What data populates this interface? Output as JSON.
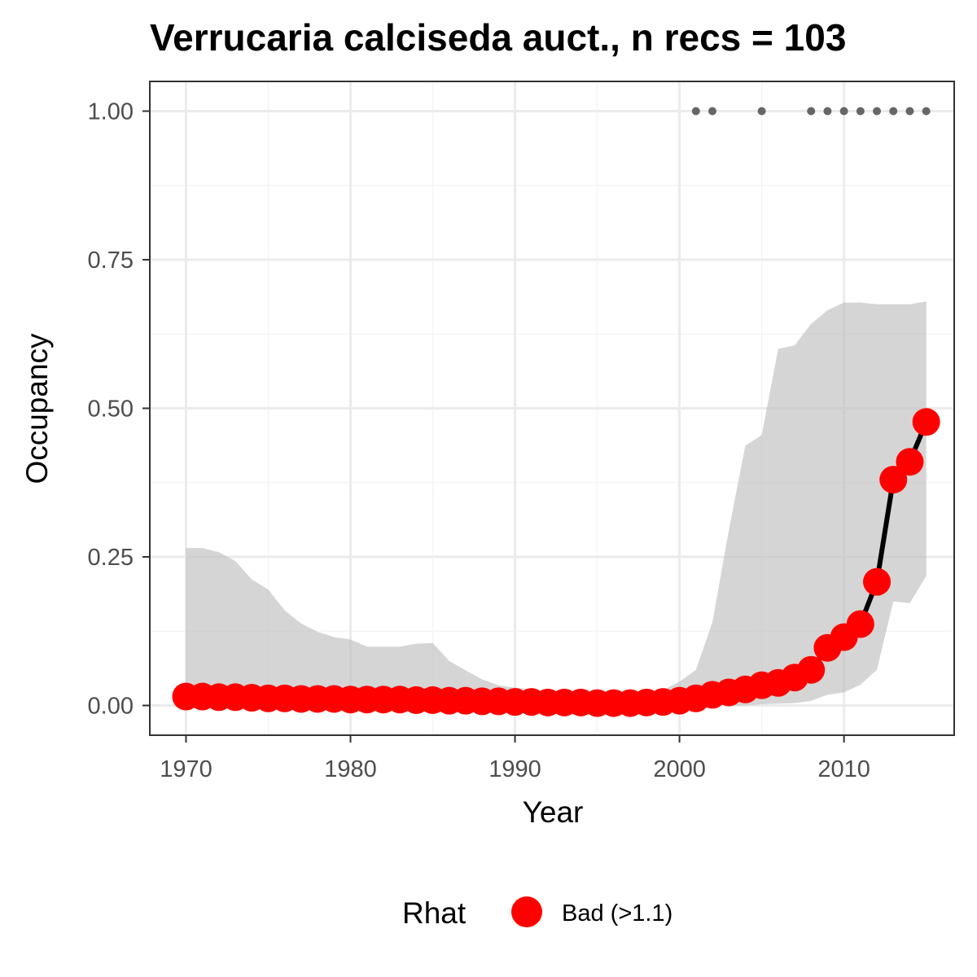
{
  "chart_data": {
    "type": "line",
    "title": "Verrucaria calciseda auct., n recs = 103",
    "xlabel": "Year",
    "ylabel": "Occupancy",
    "xlim": [
      1967.8,
      2016.7
    ],
    "ylim": [
      -0.05,
      1.05
    ],
    "x_ticks": [
      1970,
      1980,
      1990,
      2000,
      2010
    ],
    "x_tick_labels": [
      "1970",
      "1980",
      "1990",
      "2000",
      "2010"
    ],
    "y_ticks": [
      0,
      0.25,
      0.5,
      0.75,
      1.0
    ],
    "y_tick_labels": [
      "0.00",
      "0.25",
      "0.50",
      "0.75",
      "1.00"
    ],
    "grid": true,
    "x": [
      1970,
      1971,
      1972,
      1973,
      1974,
      1975,
      1976,
      1977,
      1978,
      1979,
      1980,
      1981,
      1982,
      1983,
      1984,
      1985,
      1986,
      1987,
      1988,
      1989,
      1990,
      1991,
      1992,
      1993,
      1994,
      1995,
      1996,
      1997,
      1998,
      1999,
      2000,
      2001,
      2002,
      2003,
      2004,
      2005,
      2006,
      2007,
      2008,
      2009,
      2010,
      2011,
      2012,
      2013,
      2014,
      2015
    ],
    "series": [
      {
        "name": "Bad (>1.1)",
        "values": [
          0.015,
          0.015,
          0.014,
          0.014,
          0.013,
          0.012,
          0.012,
          0.011,
          0.011,
          0.011,
          0.01,
          0.01,
          0.01,
          0.01,
          0.009,
          0.009,
          0.008,
          0.008,
          0.007,
          0.007,
          0.006,
          0.006,
          0.005,
          0.005,
          0.005,
          0.004,
          0.004,
          0.004,
          0.005,
          0.006,
          0.008,
          0.012,
          0.018,
          0.022,
          0.027,
          0.034,
          0.038,
          0.047,
          0.06,
          0.097,
          0.115,
          0.137,
          0.208,
          0.38,
          0.41,
          0.477
        ],
        "lower": [
          0.0,
          0.0,
          0.0,
          0.0,
          0.0,
          0.0,
          0.0,
          0.0,
          0.0,
          0.0,
          0.0,
          0.0,
          0.0,
          0.0,
          0.0,
          0.0,
          0.0,
          0.0,
          0.0,
          0.0,
          0.0,
          0.0,
          0.0,
          0.0,
          0.0,
          0.0,
          0.0,
          0.0,
          0.0,
          0.0,
          0.0,
          0.0,
          0.0,
          0.0,
          0.0,
          0.002,
          0.003,
          0.004,
          0.008,
          0.018,
          0.022,
          0.035,
          0.06,
          0.175,
          0.172,
          0.218
        ],
        "upper": [
          0.265,
          0.265,
          0.258,
          0.243,
          0.212,
          0.195,
          0.16,
          0.138,
          0.124,
          0.115,
          0.111,
          0.099,
          0.099,
          0.099,
          0.104,
          0.105,
          0.075,
          0.059,
          0.044,
          0.034,
          0.03,
          0.027,
          0.025,
          0.024,
          0.023,
          0.022,
          0.022,
          0.022,
          0.022,
          0.026,
          0.04,
          0.06,
          0.14,
          0.295,
          0.437,
          0.455,
          0.6,
          0.606,
          0.642,
          0.665,
          0.678,
          0.678,
          0.675,
          0.675,
          0.675,
          0.68
        ]
      }
    ],
    "records_x": [
      2001,
      2002,
      2005,
      2008,
      2009,
      2010,
      2011,
      2012,
      2013,
      2014,
      2015
    ],
    "records_y": 1.0,
    "legend": {
      "title": "Rhat",
      "position": "bottom",
      "entries": [
        "Bad (>1.1)"
      ]
    },
    "colors": {
      "points": "#ff0000",
      "line": "#000000",
      "ribbon": "#bebebe",
      "records": "#666666",
      "grid_major": "#ebebeb",
      "grid_minor": "#f4f4f4",
      "border": "#333333"
    }
  }
}
